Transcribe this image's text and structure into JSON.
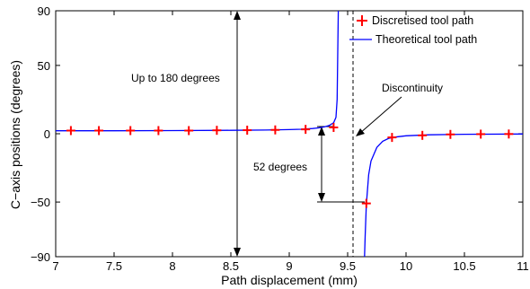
{
  "chart_data": {
    "type": "line",
    "xlabel": "Path displacement (mm)",
    "ylabel": "C−axis positions (degrees)",
    "xlim": [
      7,
      11
    ],
    "ylim": [
      -90,
      90
    ],
    "xticks": [
      7,
      7.5,
      8,
      8.5,
      9,
      9.5,
      10,
      10.5,
      11
    ],
    "xtick_labels": [
      "7",
      "7.5",
      "8",
      "8.5",
      "9",
      "9.5",
      "10",
      "10.5",
      "11"
    ],
    "yticks": [
      -90,
      -50,
      0,
      50,
      90
    ],
    "ytick_labels": [
      "−90",
      "−50",
      "0",
      "50",
      "90"
    ],
    "grid": false,
    "legend_position": "top-right",
    "series": [
      {
        "name": "Discretised tool path",
        "style": "markers",
        "marker": "plus",
        "color": "#ff0000",
        "x": [
          7.13,
          7.37,
          7.64,
          7.88,
          8.14,
          8.38,
          8.64,
          8.88,
          9.14,
          9.38,
          9.66,
          9.88,
          10.14,
          10.38,
          10.64,
          10.88
        ],
        "y": [
          2.3,
          2.3,
          2.3,
          2.3,
          2.3,
          2.5,
          2.6,
          2.8,
          3.2,
          4.6,
          -51,
          -2.7,
          -1.2,
          -0.5,
          -0.3,
          -0.2
        ]
      },
      {
        "name": "Theoretical tool path",
        "style": "line",
        "color": "#0000ff",
        "segments": [
          {
            "x": [
              7.0,
              7.5,
              8.0,
              8.5,
              8.8,
              9.0,
              9.1,
              9.2,
              9.25,
              9.3,
              9.34,
              9.38,
              9.4,
              9.41,
              9.415,
              9.42
            ],
            "y": [
              2.2,
              2.2,
              2.3,
              2.5,
              2.7,
              3.0,
              3.3,
              3.8,
              4.3,
              5.0,
              6.0,
              8.0,
              12,
              25,
              55,
              90
            ]
          },
          {
            "x": [
              9.645,
              9.65,
              9.66,
              9.68,
              9.7,
              9.75,
              9.8,
              9.85,
              9.9,
              10.0,
              10.2,
              10.5,
              11.0
            ],
            "y": [
              -90,
              -75,
              -52,
              -30,
              -20,
              -10,
              -5.5,
              -3.5,
              -2.5,
              -1.5,
              -0.8,
              -0.4,
              -0.2
            ]
          }
        ]
      }
    ],
    "annotations": {
      "up_to_180": "Up to 180 degrees",
      "degrees_52": "52 degrees",
      "discontinuity": "Discontinuity"
    }
  }
}
